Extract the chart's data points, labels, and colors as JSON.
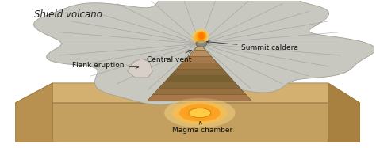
{
  "bg_color": "#ffffff",
  "title": "Shield volcano",
  "labels": {
    "central_vent": "Central vent",
    "flank_eruption": "Flank eruption",
    "summit_caldera": "Summit caldera",
    "magma_chamber": "Magma chamber"
  },
  "ground_top_color": "#d4b878",
  "ground_side_color": "#c4a060",
  "ground_front_color": "#b89050",
  "ground_dark_color": "#a07838",
  "volcano_surface_color": "#c8c8c0",
  "volcano_surface_edge": "#a0a098",
  "volcano_shadow_color": "#b0b0a8",
  "cut_layer_colors": [
    "#c8a870",
    "#b89060",
    "#a87848",
    "#987040",
    "#886838",
    "#786030",
    "#886838",
    "#987040",
    "#a87848"
  ],
  "magma_color": "#f0a010",
  "magma_glow_color": "#ffcc44",
  "summit_erupt_color": "#ffa020",
  "flank_color": "#d8d0c8",
  "fig_width": 4.74,
  "fig_height": 1.87,
  "dpi": 100
}
